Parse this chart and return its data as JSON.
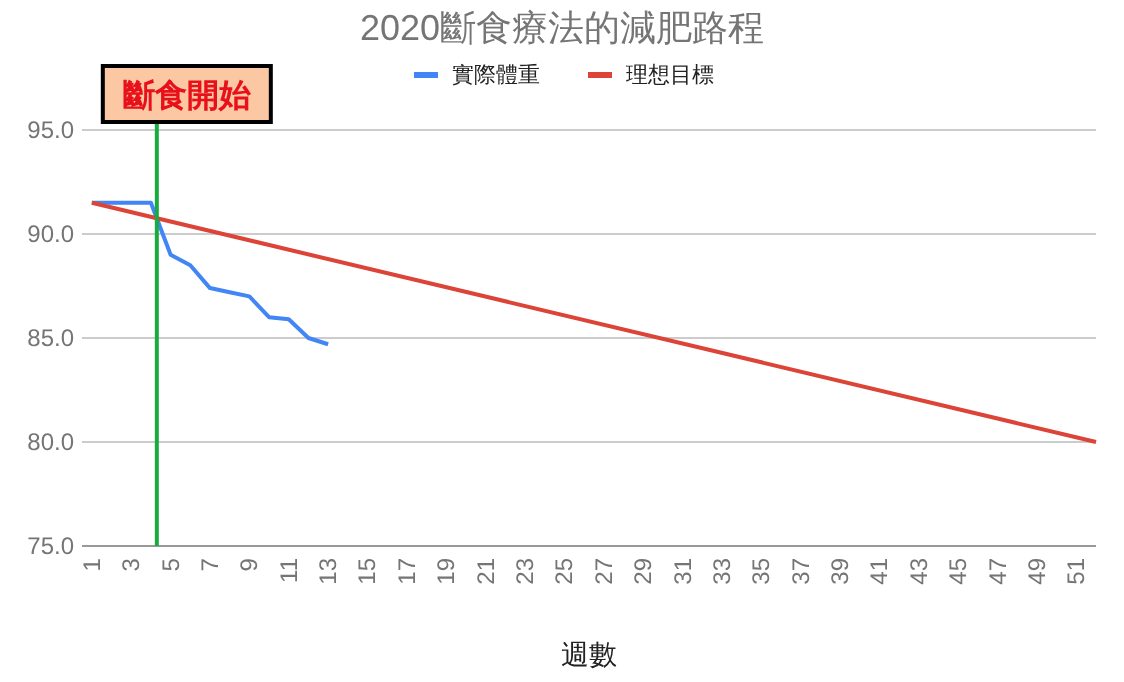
{
  "chart_data": {
    "type": "line",
    "title": "2020斷食療法的減肥路程",
    "xlabel": "週數",
    "series": [
      {
        "name": "實際體重",
        "color": "#4285f4",
        "x": [
          1,
          2,
          3,
          4,
          5,
          6,
          7,
          8,
          9,
          10,
          11,
          12,
          13
        ],
        "values": [
          91.5,
          91.5,
          91.5,
          91.5,
          89.0,
          88.5,
          87.4,
          87.2,
          87.0,
          86.0,
          85.9,
          85.0,
          84.7
        ]
      },
      {
        "name": "理想目標",
        "color": "#db4437",
        "x": [
          1,
          52
        ],
        "values": [
          91.5,
          80.0
        ]
      }
    ],
    "xlim": [
      0.5,
      52
    ],
    "xticks": [
      1,
      3,
      5,
      7,
      9,
      11,
      13,
      15,
      17,
      19,
      21,
      23,
      25,
      27,
      29,
      31,
      33,
      35,
      37,
      39,
      41,
      43,
      45,
      47,
      49,
      51
    ],
    "ylim": [
      75,
      95
    ],
    "yticks": [
      {
        "value": 75,
        "label": "75.0"
      },
      {
        "value": 80,
        "label": "80.0"
      },
      {
        "value": 85,
        "label": "85.0"
      },
      {
        "value": 90,
        "label": "90.0"
      },
      {
        "value": 95,
        "label": "95.0"
      }
    ],
    "ref_lines": [
      {
        "axis": "x",
        "value": 4.3,
        "label": "斷食開始",
        "color": "#1aab40"
      }
    ],
    "grid": "y",
    "legend": "top"
  }
}
